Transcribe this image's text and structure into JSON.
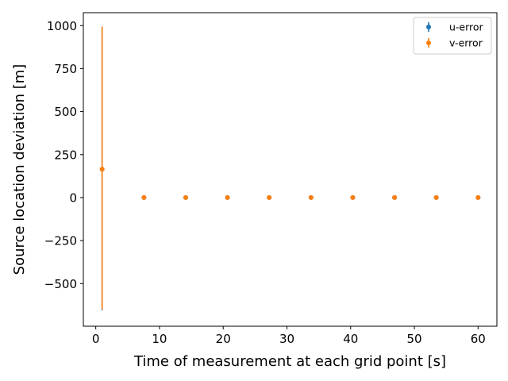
{
  "chart_data": {
    "type": "scatter",
    "xlabel": "Time of measurement at each grid point [s]",
    "ylabel": "Source location deviation [m]",
    "xlim": [
      -1.95,
      62.95
    ],
    "ylim": [
      -748,
      1075
    ],
    "x_ticks": [
      0,
      10,
      20,
      30,
      40,
      50,
      60
    ],
    "y_ticks": [
      -500,
      -250,
      0,
      250,
      500,
      750,
      1000
    ],
    "grid": false,
    "legend_position": "top-right",
    "series": [
      {
        "name": "u-error",
        "color": "#1f77b4",
        "points": [
          {
            "x": 1.0,
            "y": 165,
            "err_low": -655,
            "err_high": 990
          },
          {
            "x": 7.56,
            "y": 0,
            "err_low": 0,
            "err_high": 0
          },
          {
            "x": 14.11,
            "y": 0,
            "err_low": 0,
            "err_high": 0
          },
          {
            "x": 20.67,
            "y": 0,
            "err_low": 0,
            "err_high": 0
          },
          {
            "x": 27.22,
            "y": 0,
            "err_low": 0,
            "err_high": 0
          },
          {
            "x": 33.78,
            "y": 0,
            "err_low": 0,
            "err_high": 0
          },
          {
            "x": 40.33,
            "y": 0,
            "err_low": 0,
            "err_high": 0
          },
          {
            "x": 46.89,
            "y": 0,
            "err_low": 0,
            "err_high": 0
          },
          {
            "x": 53.44,
            "y": 0,
            "err_low": 0,
            "err_high": 0
          },
          {
            "x": 60.0,
            "y": 0,
            "err_low": 0,
            "err_high": 0
          }
        ]
      },
      {
        "name": "v-error",
        "color": "#ff7f0e",
        "points": [
          {
            "x": 1.0,
            "y": 165,
            "err_low": -650,
            "err_high": 995
          },
          {
            "x": 7.56,
            "y": 0,
            "err_low": 0,
            "err_high": 0
          },
          {
            "x": 14.11,
            "y": 0,
            "err_low": 0,
            "err_high": 0
          },
          {
            "x": 20.67,
            "y": 0,
            "err_low": 0,
            "err_high": 0
          },
          {
            "x": 27.22,
            "y": 0,
            "err_low": 0,
            "err_high": 0
          },
          {
            "x": 33.78,
            "y": 0,
            "err_low": 0,
            "err_high": 0
          },
          {
            "x": 40.33,
            "y": 0,
            "err_low": 0,
            "err_high": 0
          },
          {
            "x": 46.89,
            "y": 0,
            "err_low": 0,
            "err_high": 0
          },
          {
            "x": 53.44,
            "y": 0,
            "err_low": 0,
            "err_high": 0
          },
          {
            "x": 60.0,
            "y": 0,
            "err_low": 0,
            "err_high": 0
          }
        ]
      }
    ]
  }
}
